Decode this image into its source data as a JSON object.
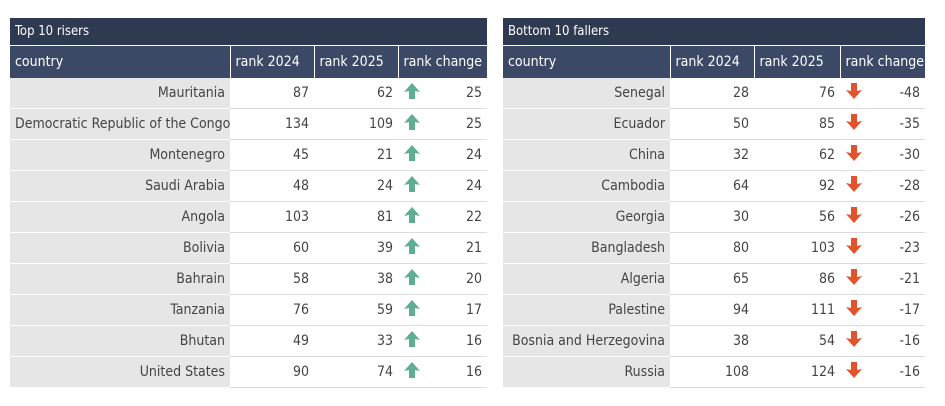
{
  "tables": [
    {
      "title": "Top 10 risers",
      "columns": [
        "country",
        "rank 2024",
        "rank 2025",
        "rank change"
      ],
      "rows": [
        [
          "Mauritania",
          87,
          62,
          25
        ],
        [
          "Democratic Republic of the Congo",
          134,
          109,
          25
        ],
        [
          "Montenegro",
          45,
          21,
          24
        ],
        [
          "Saudi Arabia",
          48,
          24,
          24
        ],
        [
          "Angola",
          103,
          81,
          22
        ],
        [
          "Bolivia",
          60,
          39,
          21
        ],
        [
          "Bahrain",
          58,
          38,
          20
        ],
        [
          "Tanzania",
          76,
          59,
          17
        ],
        [
          "Bhutan",
          49,
          33,
          16
        ],
        [
          "United States",
          90,
          74,
          16
        ]
      ]
    },
    {
      "title": "Bottom 10 fallers",
      "columns": [
        "country",
        "rank 2024",
        "rank 2025",
        "rank change"
      ],
      "rows": [
        [
          "Senegal",
          28,
          76,
          -48
        ],
        [
          "Ecuador",
          50,
          85,
          -35
        ],
        [
          "China",
          32,
          62,
          -30
        ],
        [
          "Cambodia",
          64,
          92,
          -28
        ],
        [
          "Georgia",
          30,
          56,
          -26
        ],
        [
          "Bangladesh",
          80,
          103,
          -23
        ],
        [
          "Algeria",
          65,
          86,
          -21
        ],
        [
          "Palestine",
          94,
          111,
          -17
        ],
        [
          "Bosnia and Herzegovina",
          38,
          54,
          -16
        ],
        [
          "Russia",
          108,
          124,
          -16
        ]
      ]
    }
  ]
}
